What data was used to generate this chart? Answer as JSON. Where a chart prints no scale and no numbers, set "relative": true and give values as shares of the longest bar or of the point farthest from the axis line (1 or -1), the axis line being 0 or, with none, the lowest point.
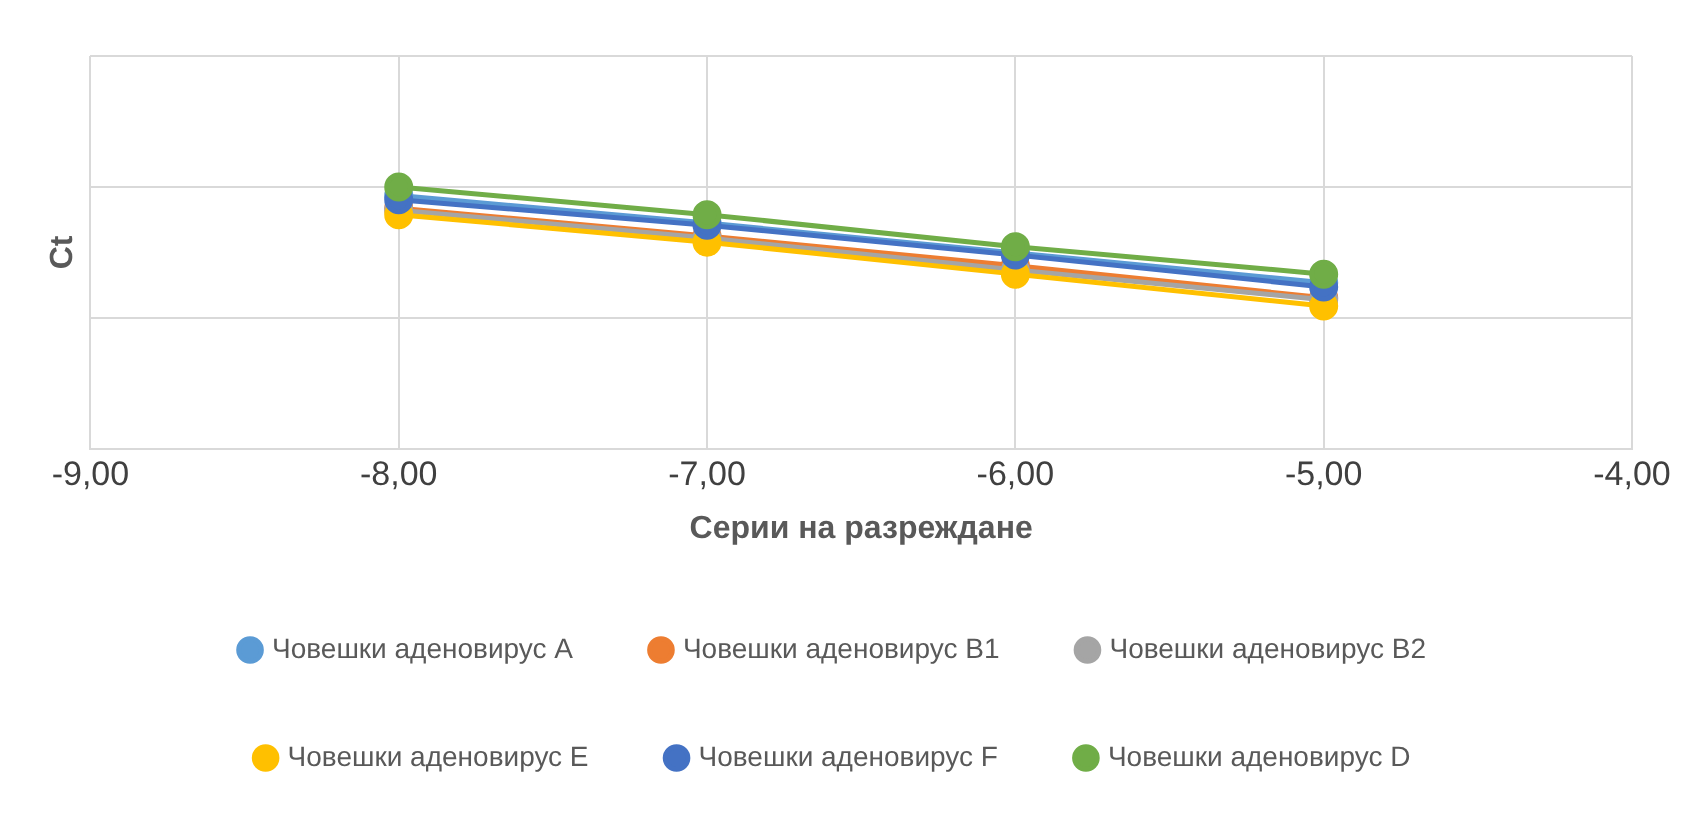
{
  "chart_data": {
    "type": "line",
    "relative": true,
    "xlabel": "Серии на разреждане",
    "ylabel": "Ct",
    "xlim": [
      -9,
      -4
    ],
    "xticks": [
      {
        "value": -9,
        "label": "-9,00"
      },
      {
        "value": -8,
        "label": "-8,00"
      },
      {
        "value": -7,
        "label": "-7,00"
      },
      {
        "value": -6,
        "label": "-6,00"
      },
      {
        "value": -5,
        "label": "-5,00"
      },
      {
        "value": -4,
        "label": "-4,00"
      }
    ],
    "x": [
      -8,
      -7,
      -6,
      -5
    ],
    "grid": true,
    "legend": "bottom",
    "marker": "circle",
    "line_style": "solid",
    "series": [
      {
        "name": "Човешки аденовирус A",
        "color": "#5b9bd5",
        "values": [
          0.967,
          0.862,
          0.748,
          0.634
        ]
      },
      {
        "name": "Човешки аденовирус B1",
        "color": "#ed7d31",
        "values": [
          0.919,
          0.813,
          0.699,
          0.577
        ]
      },
      {
        "name": "Човешки аденовирус B2",
        "color": "#a5a5a5",
        "values": [
          0.911,
          0.805,
          0.683,
          0.569
        ]
      },
      {
        "name": "Човешки аденовирус E",
        "color": "#ffc000",
        "values": [
          0.894,
          0.789,
          0.667,
          0.545
        ]
      },
      {
        "name": "Човешки аденовирус F",
        "color": "#4472c4",
        "values": [
          0.951,
          0.854,
          0.74,
          0.618
        ]
      },
      {
        "name": "Човешки аденовирус D",
        "color": "#70ad47",
        "values": [
          1,
          0.894,
          0.772,
          0.667
        ]
      }
    ]
  }
}
